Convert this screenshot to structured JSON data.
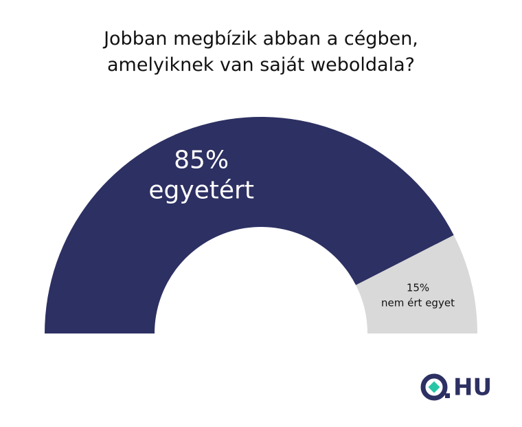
{
  "chart_data": {
    "type": "pie",
    "half": true,
    "title": "Jobban megbízik abban a cégben, amelyiknek van saját weboldala?",
    "categories": [
      "egyetért",
      "nem ért egyet"
    ],
    "values": [
      85,
      15
    ],
    "value_labels": [
      "85%",
      "15%"
    ],
    "colors": [
      "#2d3062",
      "#d9d9d9"
    ]
  },
  "logo": {
    "text": "HU"
  }
}
